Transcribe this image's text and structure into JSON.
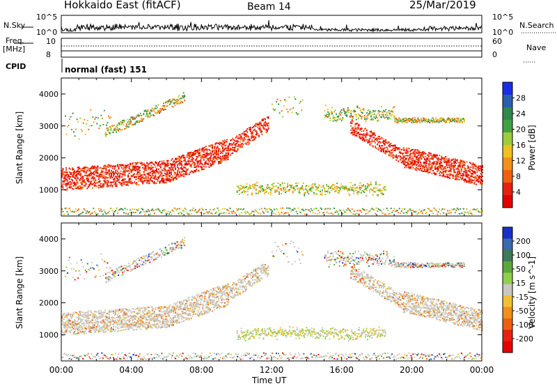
{
  "header": {
    "radar": "Hokkaido East (fitACF)",
    "beam": "Beam 14",
    "date": "25/Mar/2019"
  },
  "left_labels": {
    "nsky": "N.Sky",
    "freq": "Freq.",
    "freq_unit": "[MHz]",
    "cpid": "CPID"
  },
  "right_labels": {
    "nsearch": "N.Search",
    "nave": "Nave"
  },
  "cpid_text": "normal (fast) 151",
  "noise_axis": {
    "left_top": "10^5",
    "left_bottom": "10^0",
    "right_top": "10^5",
    "right_bottom": "10^0"
  },
  "freq_axis": {
    "left_top": "10",
    "left_bottom": "8",
    "right_top": "60",
    "right_bottom": "0"
  },
  "chart_data": [
    {
      "type": "heatmap",
      "panel": "power",
      "ylabel": "Slant Range [km]",
      "ylim": [
        180,
        4500
      ],
      "yticks": [
        1000,
        2000,
        3000,
        4000
      ],
      "xlim": [
        "00:00",
        "24:00"
      ],
      "colorbar": {
        "label": "Power [dB]",
        "ticks": [
          "4",
          "8",
          "12",
          "16",
          "20",
          "24",
          "28"
        ],
        "colors": [
          "#1a2ee8",
          "#2a5fb0",
          "#2f8a4c",
          "#3fa33f",
          "#9ccc3a",
          "#f0c020",
          "#f29018",
          "#f06010",
          "#e82010",
          "#e40000"
        ]
      }
    },
    {
      "type": "heatmap",
      "panel": "velocity",
      "ylabel": "Slant Range [km]",
      "ylim": [
        180,
        4500
      ],
      "yticks": [
        1000,
        2000,
        3000,
        4000
      ],
      "xlim": [
        "00:00",
        "24:00"
      ],
      "colorbar": {
        "label": "Velocity [m s^-1]",
        "ticks": [
          "200",
          "100",
          "50",
          "15",
          "-15",
          "-50",
          "-100",
          "-200"
        ],
        "colors": [
          "#1830c8",
          "#3a6ab0",
          "#3d7a55",
          "#5aa83a",
          "#8ed04a",
          "#c8c8c0",
          "#f0c030",
          "#f09018",
          "#ee6010",
          "#e82010",
          "#e80000"
        ]
      }
    }
  ],
  "time_axis": {
    "label": "Time UT",
    "ticks": [
      "00:00",
      "04:00",
      "08:00",
      "12:00",
      "16:00",
      "20:00",
      "00:00"
    ]
  }
}
